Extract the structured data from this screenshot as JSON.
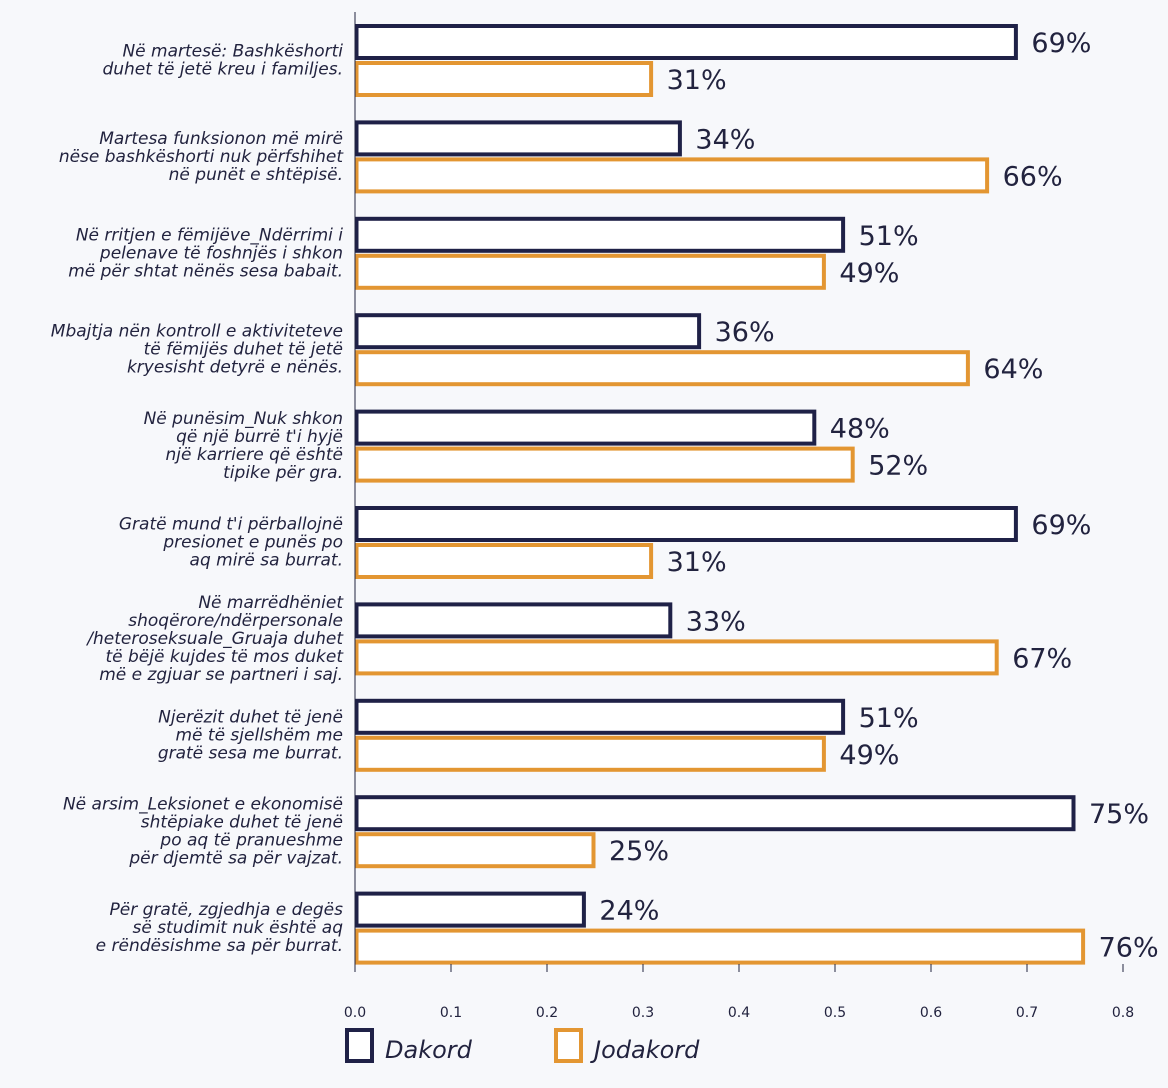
{
  "chart_data": {
    "type": "bar",
    "orientation": "horizontal",
    "categories": [
      [
        "Në martesë: Bashkëshorti",
        "duhet të jetë kreu i familjes."
      ],
      [
        "Martesa funksionon më mirë",
        "nëse bashkëshorti nuk përfshihet",
        "në punët e shtëpisë."
      ],
      [
        "Në rritjen e fëmijëve_Ndërrimi i",
        "pelenave të foshnjës i shkon",
        "më për shtat nënës sesa babait."
      ],
      [
        "Mbajtja nën kontroll e aktiviteteve",
        "të fëmijës duhet të jetë",
        "kryesisht detyrë e nënës."
      ],
      [
        "Në punësim_Nuk shkon",
        "që një burrë t'i hyjë",
        "një karriere që është",
        "tipike për gra."
      ],
      [
        "Gratë mund t'i përballojnë",
        "presionet e punës po",
        "aq mirë sa burrat."
      ],
      [
        "Në marrëdhëniet",
        "shoqërore/ndërpersonale",
        "/heteroseksuale_Gruaja duhet",
        "të bëjë kujdes të mos duket",
        "më e zgjuar se partneri i saj."
      ],
      [
        "Njerëzit duhet të jenë",
        "më të sjellshëm me",
        "gratë sesa me burrat."
      ],
      [
        "Në arsim_Leksionet e ekonomisë",
        "shtëpiake duhet të jenë",
        "po aq të pranueshme",
        "për djemtë sa për vajzat."
      ],
      [
        "Për gratë, zgjedhja e degës",
        "së studimit nuk është aq",
        "e rëndësishme sa për burrat."
      ]
    ],
    "series": [
      {
        "name": "Dakord",
        "color": "#1f2147",
        "values": [
          0.69,
          0.34,
          0.51,
          0.36,
          0.48,
          0.69,
          0.33,
          0.51,
          0.75,
          0.24
        ],
        "labels": [
          "69%",
          "34%",
          "51%",
          "36%",
          "48%",
          "69%",
          "33%",
          "51%",
          "75%",
          "24%"
        ]
      },
      {
        "name": "Jodakord",
        "color": "#e39632",
        "values": [
          0.31,
          0.66,
          0.49,
          0.64,
          0.52,
          0.31,
          0.67,
          0.49,
          0.25,
          0.76
        ],
        "labels": [
          "31%",
          "66%",
          "49%",
          "64%",
          "52%",
          "31%",
          "67%",
          "49%",
          "25%",
          "76%"
        ]
      }
    ],
    "xlim": [
      0,
      0.8
    ],
    "xticks": [
      "0.0",
      "0.1",
      "0.2",
      "0.3",
      "0.4",
      "0.5",
      "0.6",
      "0.7",
      "0.8"
    ],
    "grid": false,
    "legend_position": "bottom-left"
  }
}
